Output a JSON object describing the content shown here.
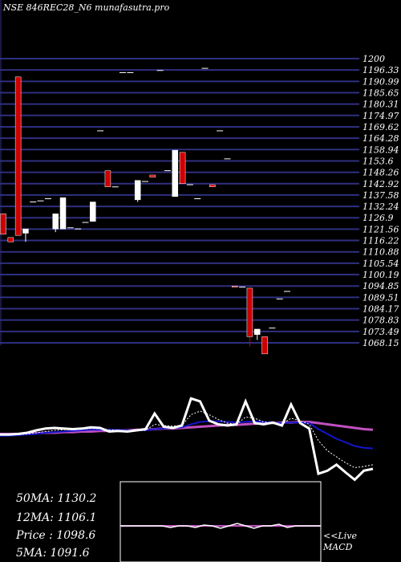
{
  "header": {
    "title": "NSE 846REC28_N6 munafasutra.pro"
  },
  "chart_data": {
    "type": "candlestick",
    "title": "NSE 846REC28_N6 munafasutra.pro",
    "ylim": [
      1068.15,
      1200
    ],
    "y_ticks": [
      "1200",
      "1196.33",
      "1190.99",
      "1185.65",
      "1180.31",
      "1174.97",
      "1169.62",
      "1164.28",
      "1158.94",
      "1153.6",
      "1148.26",
      "1142.92",
      "1137.58",
      "1132.24",
      "1126.9",
      "1121.56",
      "1116.22",
      "1110.88",
      "1105.54",
      "1100.19",
      "1094.85",
      "1089.51",
      "1084.17",
      "1078.83",
      "1073.49",
      "1068.15"
    ],
    "candles": [
      {
        "open": 1128.0,
        "close": 1118.5,
        "high": 1128.0,
        "low": 1118.5,
        "dir": "down"
      },
      {
        "open": 1117.0,
        "close": 1115.0,
        "high": 1117.0,
        "low": 1115.0,
        "dir": "down"
      },
      {
        "open": 1191.5,
        "close": 1118.0,
        "high": 1191.5,
        "low": 1118.0,
        "dir": "down"
      },
      {
        "open": 1119.0,
        "close": 1121.0,
        "high": 1121.0,
        "low": 1115.0,
        "dir": "up"
      },
      {
        "open": 1133.5,
        "close": 1133.5,
        "high": 1133.5,
        "low": 1133.5,
        "dir": "flat"
      },
      {
        "open": 1134.0,
        "close": 1134.0,
        "high": 1134.0,
        "low": 1134.0,
        "dir": "flat"
      },
      {
        "open": 1135.0,
        "close": 1135.0,
        "high": 1135.0,
        "low": 1135.0,
        "dir": "flat"
      },
      {
        "open": 1121.0,
        "close": 1128.0,
        "high": 1128.0,
        "low": 1119.5,
        "dir": "up"
      },
      {
        "open": 1121.0,
        "close": 1135.5,
        "high": 1135.5,
        "low": 1121.0,
        "dir": "up"
      },
      {
        "open": 1121.5,
        "close": 1121.5,
        "high": 1121.5,
        "low": 1121.5,
        "dir": "flat"
      },
      {
        "open": 1121.0,
        "close": 1121.0,
        "high": 1121.0,
        "low": 1121.0,
        "dir": "flat"
      },
      {
        "open": 1124.0,
        "close": 1124.0,
        "high": 1124.0,
        "low": 1124.0,
        "dir": "flat"
      },
      {
        "open": 1124.5,
        "close": 1133.5,
        "high": 1133.5,
        "low": 1124.5,
        "dir": "up"
      },
      {
        "open": 1166.5,
        "close": 1166.5,
        "high": 1166.5,
        "low": 1166.5,
        "dir": "flat"
      },
      {
        "open": 1148.0,
        "close": 1140.5,
        "high": 1148.0,
        "low": 1140.5,
        "dir": "down"
      },
      {
        "open": 1140.5,
        "close": 1140.5,
        "high": 1140.5,
        "low": 1140.5,
        "dir": "flat"
      },
      {
        "open": 1193.5,
        "close": 1193.5,
        "high": 1193.5,
        "low": 1193.5,
        "dir": "flat"
      },
      {
        "open": 1193.5,
        "close": 1193.5,
        "high": 1193.5,
        "low": 1193.5,
        "dir": "flat"
      },
      {
        "open": 1134.5,
        "close": 1143.5,
        "high": 1143.5,
        "low": 1133.5,
        "dir": "up"
      },
      {
        "open": 1143.0,
        "close": 1143.0,
        "high": 1143.0,
        "low": 1143.0,
        "dir": "flat"
      },
      {
        "open": 1146.0,
        "close": 1145.0,
        "high": 1146.0,
        "low": 1145.0,
        "dir": "down"
      },
      {
        "open": 1194.5,
        "close": 1194.5,
        "high": 1194.5,
        "low": 1194.5,
        "dir": "flat"
      },
      {
        "open": 1148.0,
        "close": 1148.0,
        "high": 1148.0,
        "low": 1148.0,
        "dir": "flat"
      },
      {
        "open": 1136.0,
        "close": 1157.5,
        "high": 1157.5,
        "low": 1136.0,
        "dir": "up"
      },
      {
        "open": 1156.5,
        "close": 1142.0,
        "high": 1156.5,
        "low": 1142.0,
        "dir": "down"
      },
      {
        "open": 1141.5,
        "close": 1141.5,
        "high": 1141.5,
        "low": 1141.5,
        "dir": "flat"
      },
      {
        "open": 1135.0,
        "close": 1135.0,
        "high": 1135.0,
        "low": 1135.0,
        "dir": "flat"
      },
      {
        "open": 1195.5,
        "close": 1195.5,
        "high": 1195.5,
        "low": 1195.5,
        "dir": "flat"
      },
      {
        "open": 1141.5,
        "close": 1140.5,
        "high": 1141.5,
        "low": 1140.5,
        "dir": "down"
      },
      {
        "open": 1166.5,
        "close": 1166.5,
        "high": 1166.5,
        "low": 1166.5,
        "dir": "flat"
      },
      {
        "open": 1153.5,
        "close": 1153.5,
        "high": 1153.5,
        "low": 1153.5,
        "dir": "flat"
      },
      {
        "open": 1094.5,
        "close": 1094.0,
        "high": 1094.5,
        "low": 1094.0,
        "dir": "down"
      },
      {
        "open": 1094.0,
        "close": 1094.0,
        "high": 1094.0,
        "low": 1094.0,
        "dir": "flat"
      },
      {
        "open": 1093.5,
        "close": 1071.0,
        "high": 1093.5,
        "low": 1066.5,
        "dir": "down"
      },
      {
        "open": 1072.0,
        "close": 1074.5,
        "high": 1074.5,
        "low": 1069.5,
        "dir": "up"
      },
      {
        "open": 1071.0,
        "close": 1063.0,
        "high": 1071.0,
        "low": 1063.0,
        "dir": "down"
      },
      {
        "open": 1075.0,
        "close": 1075.0,
        "high": 1075.0,
        "low": 1075.0,
        "dir": "flat"
      },
      {
        "open": 1088.5,
        "close": 1088.5,
        "high": 1088.5,
        "low": 1088.5,
        "dir": "flat"
      },
      {
        "open": 1092.0,
        "close": 1092.0,
        "high": 1092.0,
        "low": 1092.0,
        "dir": "flat"
      }
    ],
    "indicators": {
      "price_line": [
        0.05,
        0.05,
        0.06,
        0.08,
        0.12,
        0.15,
        0.16,
        0.15,
        0.14,
        0.15,
        0.17,
        0.16,
        0.1,
        0.11,
        0.1,
        0.12,
        0.14,
        0.4,
        0.18,
        0.16,
        0.2,
        0.65,
        0.6,
        0.28,
        0.22,
        0.2,
        0.22,
        0.6,
        0.24,
        0.22,
        0.25,
        0.2,
        0.55,
        0.24,
        0.15,
        -0.6,
        -0.55,
        -0.45,
        -0.58,
        -0.7,
        -0.55,
        -0.52
      ],
      "ma_short": [
        0.04,
        0.04,
        0.05,
        0.06,
        0.08,
        0.1,
        0.12,
        0.13,
        0.13,
        0.14,
        0.15,
        0.15,
        0.13,
        0.12,
        0.11,
        0.11,
        0.12,
        0.22,
        0.2,
        0.19,
        0.2,
        0.38,
        0.44,
        0.38,
        0.3,
        0.24,
        0.22,
        0.34,
        0.32,
        0.26,
        0.24,
        0.22,
        0.32,
        0.28,
        0.22,
        -0.05,
        -0.22,
        -0.32,
        -0.42,
        -0.5,
        -0.48,
        -0.45
      ],
      "ma_mid": [
        0.03,
        0.03,
        0.04,
        0.05,
        0.06,
        0.08,
        0.09,
        0.1,
        0.11,
        0.12,
        0.13,
        0.13,
        0.13,
        0.13,
        0.12,
        0.12,
        0.12,
        0.14,
        0.15,
        0.16,
        0.17,
        0.22,
        0.26,
        0.27,
        0.27,
        0.26,
        0.25,
        0.26,
        0.27,
        0.26,
        0.25,
        0.24,
        0.25,
        0.25,
        0.24,
        0.14,
        0.06,
        -0.02,
        -0.08,
        -0.14,
        -0.17,
        -0.18
      ],
      "ma_long": [
        0.06,
        0.06,
        0.06,
        0.07,
        0.07,
        0.08,
        0.08,
        0.09,
        0.09,
        0.1,
        0.1,
        0.11,
        0.11,
        0.12,
        0.12,
        0.13,
        0.13,
        0.14,
        0.15,
        0.15,
        0.16,
        0.17,
        0.18,
        0.19,
        0.2,
        0.21,
        0.21,
        0.22,
        0.23,
        0.24,
        0.24,
        0.25,
        0.25,
        0.26,
        0.26,
        0.24,
        0.22,
        0.2,
        0.18,
        0.16,
        0.14,
        0.13
      ]
    },
    "macd": {
      "line": [
        0.0,
        0.0,
        0.0,
        0.0,
        0.0,
        0.0,
        -0.1,
        0.0,
        0.0,
        -0.1,
        0.05,
        0.0,
        -0.15,
        0.0,
        0.15,
        0.0,
        -0.15,
        0.0,
        0.0,
        0.1,
        -0.1,
        0.0,
        0.0,
        0.0,
        0.0
      ],
      "signal": [
        0.0,
        0.0,
        0.0,
        0.0,
        0.0,
        0.0,
        0.0,
        0.0,
        0.0,
        0.0,
        0.0,
        0.0,
        0.0,
        0.0,
        0.0,
        0.0,
        0.0,
        0.0,
        0.0,
        0.0,
        0.0,
        0.0,
        0.0,
        0.0,
        0.0
      ]
    }
  },
  "stats": [
    {
      "label": "50MA",
      "value": "1130.2"
    },
    {
      "label": "12MA",
      "value": "1106.1"
    },
    {
      "label": "Price ",
      "value": "1098.6"
    },
    {
      "label": "5MA",
      "value": "1091.6"
    }
  ],
  "macd_panel": {
    "label_top": "<<Live",
    "label_bottom": "MACD"
  },
  "colors": {
    "background": "#000000",
    "gridline": "#2f2f80",
    "up_candle": "#ffffff",
    "down_candle": "#cc0000",
    "price_line": "#ffffff",
    "ma_short": "#ffffff",
    "ma_mid": "#1515cc",
    "ma_long": "#c050c0",
    "macd_line": "#ffffff",
    "macd_signal": "#c050c0"
  }
}
